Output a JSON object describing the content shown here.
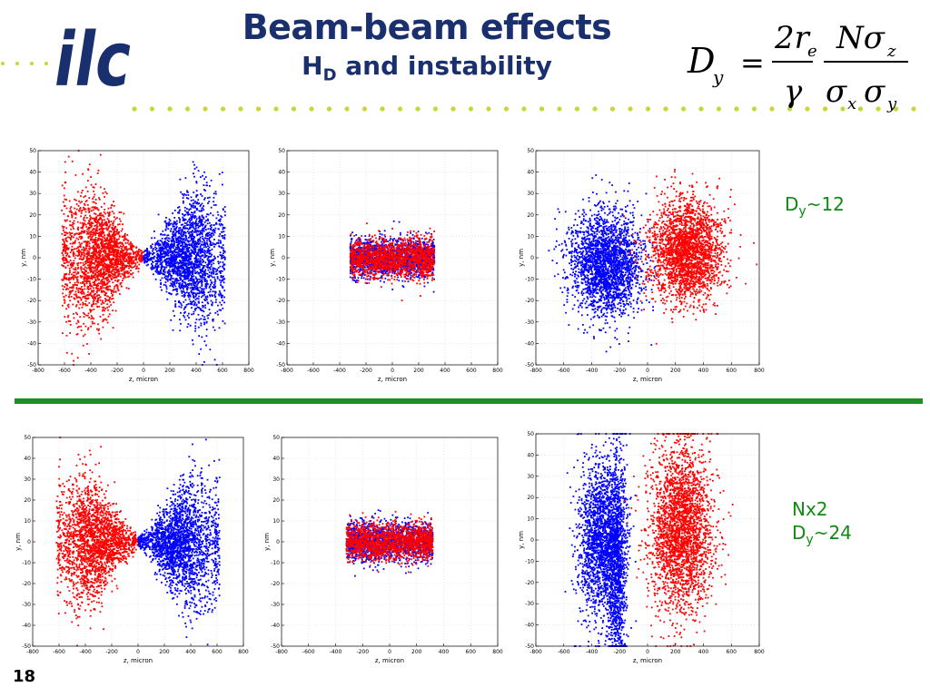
{
  "header": {
    "logo_text": "ilc",
    "title": "Beam-beam effects",
    "subtitle_main": "H",
    "subtitle_sub": "D",
    "subtitle_rest": " and instability",
    "formula": {
      "lhs": "D",
      "lhs_sub": "y",
      "eq": "=",
      "num1": "2r",
      "num1_sub": "e",
      "den1": "γ",
      "num2": "Nσ",
      "num2_sub": "z",
      "den2a": "σ",
      "den2a_sub": "x",
      "den2b": "σ",
      "den2b_sub": "y"
    }
  },
  "notes": {
    "top_dy": "D",
    "top_dy_sub": "y",
    "top_dy_val": "~12",
    "bottom_line1": "Nx2",
    "bottom_dy": "D",
    "bottom_dy_sub": "y",
    "bottom_dy_val": "~24"
  },
  "page_number": "18",
  "colors": {
    "brand_blue": "#1a2f6e",
    "brand_dots": "#c8d63a",
    "divider_green": "#1f8f1f",
    "note_green": "#118a11",
    "series_red": "#ff0000",
    "series_blue": "#0000ff"
  },
  "chart_data": [
    {
      "type": "scatter",
      "panel": "top-left",
      "xlabel": "z, micron",
      "ylabel": "y, nm",
      "xlim": [
        -800,
        800
      ],
      "ylim": [
        -50,
        50
      ],
      "xticks": [
        -800,
        -600,
        -400,
        -200,
        0,
        200,
        400,
        600,
        800
      ],
      "yticks": [
        -50,
        -40,
        -30,
        -20,
        -10,
        0,
        10,
        20,
        30,
        40,
        50
      ],
      "grid": true,
      "series": [
        {
          "color": "#ff0000",
          "n": 2200,
          "shape": "cone",
          "cx": -330,
          "zmin": -620,
          "zmax": 0,
          "widthAtEdge": 42,
          "widthAtCenter": 3,
          "zsd": 150
        },
        {
          "color": "#0000ff",
          "n": 2200,
          "shape": "cone",
          "cx": 330,
          "zmin": 0,
          "zmax": 620,
          "widthAtEdge": 42,
          "widthAtCenter": 3,
          "zsd": 150
        }
      ]
    },
    {
      "type": "scatter",
      "panel": "top-middle",
      "xlabel": "z, micron",
      "ylabel": "y, nm",
      "xlim": [
        -800,
        800
      ],
      "ylim": [
        -50,
        50
      ],
      "xticks": [
        -800,
        -600,
        -400,
        -200,
        0,
        200,
        400,
        600,
        800
      ],
      "yticks": [
        -50,
        -40,
        -30,
        -20,
        -10,
        0,
        10,
        20,
        30,
        40,
        50
      ],
      "grid": true,
      "series": [
        {
          "color": "#0000ff",
          "n": 1600,
          "shape": "box",
          "zmin": -320,
          "zmax": 320,
          "ysd": 4.5
        },
        {
          "color": "#ff0000",
          "n": 1600,
          "shape": "box",
          "zmin": -320,
          "zmax": 320,
          "ysd": 4.5
        }
      ]
    },
    {
      "type": "scatter",
      "panel": "top-right",
      "xlabel": "z, micron",
      "ylabel": "y, nm",
      "xlim": [
        -800,
        800
      ],
      "ylim": [
        -50,
        50
      ],
      "xticks": [
        -800,
        -600,
        -400,
        -200,
        0,
        200,
        400,
        600,
        800
      ],
      "yticks": [
        -50,
        -40,
        -30,
        -20,
        -10,
        0,
        10,
        20,
        30,
        40,
        50
      ],
      "grid": true,
      "series": [
        {
          "color": "#0000ff",
          "n": 2400,
          "shape": "blob",
          "cx": -300,
          "zsd": 130,
          "ysd": 12,
          "cy": -3
        },
        {
          "color": "#ff0000",
          "n": 2400,
          "shape": "blob",
          "cx": 280,
          "zsd": 130,
          "ysd": 12,
          "cy": 3
        }
      ]
    },
    {
      "type": "scatter",
      "panel": "bottom-left",
      "xlabel": "z, micron",
      "ylabel": "y, nm",
      "xlim": [
        -800,
        800
      ],
      "ylim": [
        -50,
        50
      ],
      "xticks": [
        -800,
        -600,
        -400,
        -200,
        0,
        200,
        400,
        600,
        800
      ],
      "yticks": [
        -50,
        -40,
        -30,
        -20,
        -10,
        0,
        10,
        20,
        30,
        40,
        50
      ],
      "grid": true,
      "series": [
        {
          "color": "#ff0000",
          "n": 2200,
          "shape": "cone",
          "cx": -330,
          "zmin": -620,
          "zmax": 0,
          "widthAtEdge": 42,
          "widthAtCenter": 3,
          "zsd": 150
        },
        {
          "color": "#0000ff",
          "n": 2200,
          "shape": "cone",
          "cx": 330,
          "zmin": 0,
          "zmax": 620,
          "widthAtEdge": 42,
          "widthAtCenter": 3,
          "zsd": 150
        }
      ]
    },
    {
      "type": "scatter",
      "panel": "bottom-middle",
      "xlabel": "z, micron",
      "ylabel": "y, nm",
      "xlim": [
        -800,
        800
      ],
      "ylim": [
        -50,
        50
      ],
      "xticks": [
        -800,
        -600,
        -400,
        -200,
        0,
        200,
        400,
        600,
        800
      ],
      "yticks": [
        -50,
        -40,
        -30,
        -20,
        -10,
        0,
        10,
        20,
        30,
        40,
        50
      ],
      "grid": true,
      "series": [
        {
          "color": "#0000ff",
          "n": 1600,
          "shape": "box",
          "zmin": -320,
          "zmax": 320,
          "ysd": 4.5
        },
        {
          "color": "#ff0000",
          "n": 1600,
          "shape": "box",
          "zmin": -320,
          "zmax": 320,
          "ysd": 4.5
        }
      ]
    },
    {
      "type": "scatter",
      "panel": "bottom-right",
      "xlabel": "z, micron",
      "ylabel": "y, nm",
      "xlim": [
        -800,
        800
      ],
      "ylim": [
        -50,
        50
      ],
      "xticks": [
        -800,
        -600,
        -400,
        -200,
        0,
        200,
        400,
        600,
        800
      ],
      "yticks": [
        -50,
        -40,
        -30,
        -20,
        -10,
        0,
        10,
        20,
        30,
        40,
        50
      ],
      "grid": true,
      "series": [
        {
          "color": "#0000ff",
          "n": 1800,
          "shape": "blob",
          "cx": -340,
          "zsd": 80,
          "ysd": 18,
          "cy": 0
        },
        {
          "color": "#0000ff",
          "n": 1200,
          "shape": "blob",
          "cx": -220,
          "zsd": 35,
          "ysd": 26,
          "cy": -10
        },
        {
          "color": "#ff0000",
          "n": 2600,
          "shape": "blob",
          "cx": 240,
          "zsd": 110,
          "ysd": 20,
          "cy": 5
        }
      ]
    }
  ]
}
